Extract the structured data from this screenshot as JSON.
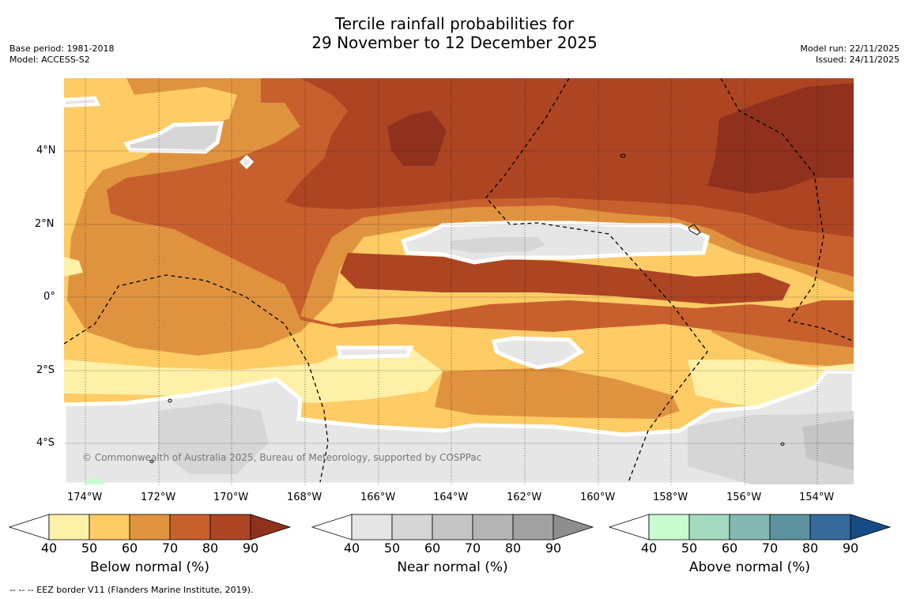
{
  "title_line1": "Tercile rainfall probabilities for",
  "title_line2": "29 November to 12 December 2025",
  "base_period": "Base period: 1981-2018",
  "model": "Model: ACCESS-S2",
  "model_run": "Model run: 22/11/2025",
  "issued": "Issued: 24/11/2025",
  "credit": "© Commonwealth of Australia 2025, Bureau of Meteorology, supported by COSPPac",
  "eez_legend": "--  --  -- EEZ border V11 (Flanders Marine Institute, 2019).",
  "lon_labels": [
    "174°W",
    "172°W",
    "170°W",
    "168°W",
    "166°W",
    "164°W",
    "162°W",
    "160°W",
    "158°W",
    "156°W",
    "154°W"
  ],
  "lat_labels": [
    "4°N",
    "2°N",
    "0°",
    "2°S",
    "4°S"
  ],
  "colorbars": [
    {
      "label": "Below normal (%)",
      "ticks": [
        "40",
        "50",
        "60",
        "70",
        "80",
        "90"
      ],
      "colors": [
        "#fff0a8",
        "#fecb65",
        "#e0933f",
        "#c8602e",
        "#ad4523",
        "#90311e"
      ]
    },
    {
      "label": "Near normal (%)",
      "ticks": [
        "40",
        "50",
        "60",
        "70",
        "80",
        "90"
      ],
      "colors": [
        "#e6e6e6",
        "#d6d6d6",
        "#c5c5c5",
        "#b4b4b4",
        "#a2a2a2",
        "#8e8e8e"
      ]
    },
    {
      "label": "Above normal (%)",
      "ticks": [
        "40",
        "50",
        "60",
        "70",
        "80",
        "90"
      ],
      "colors": [
        "#c9fbd0",
        "#a3dbc0",
        "#84b8b3",
        "#5d929f",
        "#376a9d",
        "#164c85"
      ]
    }
  ]
}
